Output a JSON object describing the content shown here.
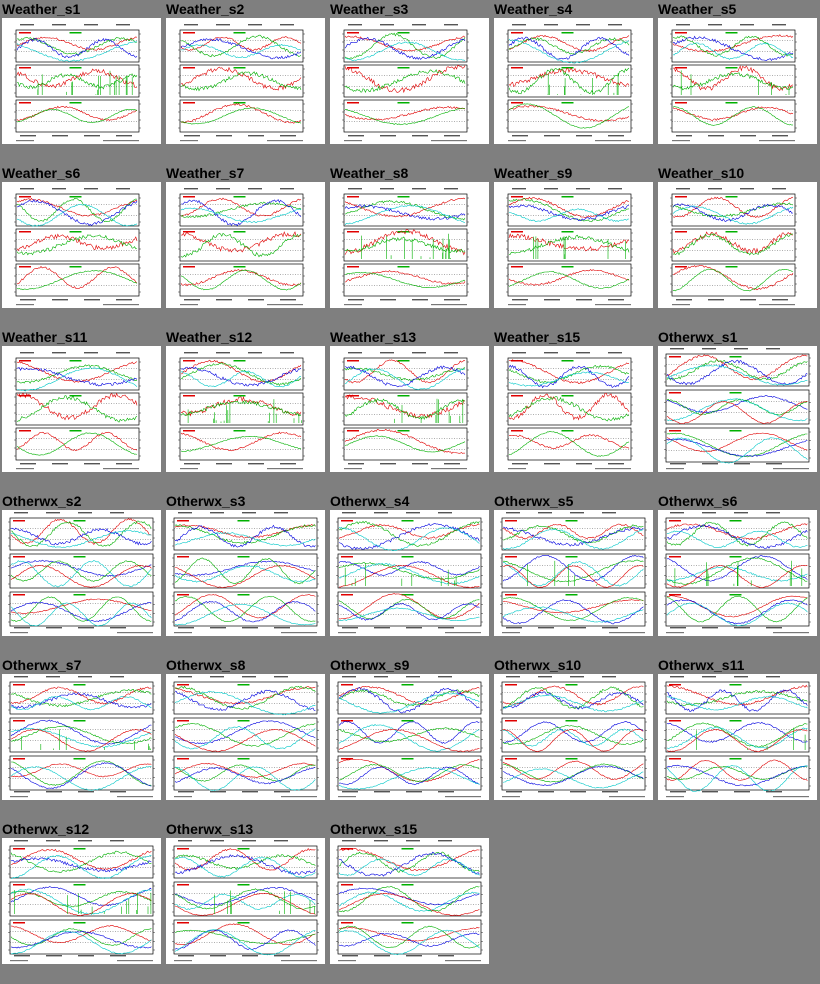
{
  "page": {
    "background": "#7f7f7f",
    "colors": {
      "red": "#e00000",
      "green": "#00b000",
      "blue": "#0000e0",
      "cyan": "#00c8c8",
      "magenta": "#e000e0"
    }
  },
  "thumbnails": [
    {
      "title": "Weather_s1",
      "kind": "weather"
    },
    {
      "title": "Weather_s2",
      "kind": "weather"
    },
    {
      "title": "Weather_s3",
      "kind": "weather"
    },
    {
      "title": "Weather_s4",
      "kind": "weather"
    },
    {
      "title": "Weather_s5",
      "kind": "weather"
    },
    {
      "title": "Weather_s6",
      "kind": "weather"
    },
    {
      "title": "Weather_s7",
      "kind": "weather"
    },
    {
      "title": "Weather_s8",
      "kind": "weather"
    },
    {
      "title": "Weather_s9",
      "kind": "weather"
    },
    {
      "title": "Weather_s10",
      "kind": "weather"
    },
    {
      "title": "Weather_s11",
      "kind": "weather"
    },
    {
      "title": "Weather_s12",
      "kind": "weather"
    },
    {
      "title": "Weather_s13",
      "kind": "weather"
    },
    {
      "title": "Weather_s15",
      "kind": "weather"
    },
    {
      "title": "Otherwx_s1",
      "kind": "otherwx"
    },
    {
      "title": "Otherwx_s2",
      "kind": "otherwx"
    },
    {
      "title": "Otherwx_s3",
      "kind": "otherwx"
    },
    {
      "title": "Otherwx_s4",
      "kind": "otherwx"
    },
    {
      "title": "Otherwx_s5",
      "kind": "otherwx"
    },
    {
      "title": "Otherwx_s6",
      "kind": "otherwx"
    },
    {
      "title": "Otherwx_s7",
      "kind": "otherwx"
    },
    {
      "title": "Otherwx_s8",
      "kind": "otherwx"
    },
    {
      "title": "Otherwx_s9",
      "kind": "otherwx"
    },
    {
      "title": "Otherwx_s10",
      "kind": "otherwx"
    },
    {
      "title": "Otherwx_s11",
      "kind": "otherwx"
    },
    {
      "title": "Otherwx_s12",
      "kind": "otherwx"
    },
    {
      "title": "Otherwx_s13",
      "kind": "otherwx"
    },
    {
      "title": "Otherwx_s15",
      "kind": "otherwx"
    }
  ]
}
